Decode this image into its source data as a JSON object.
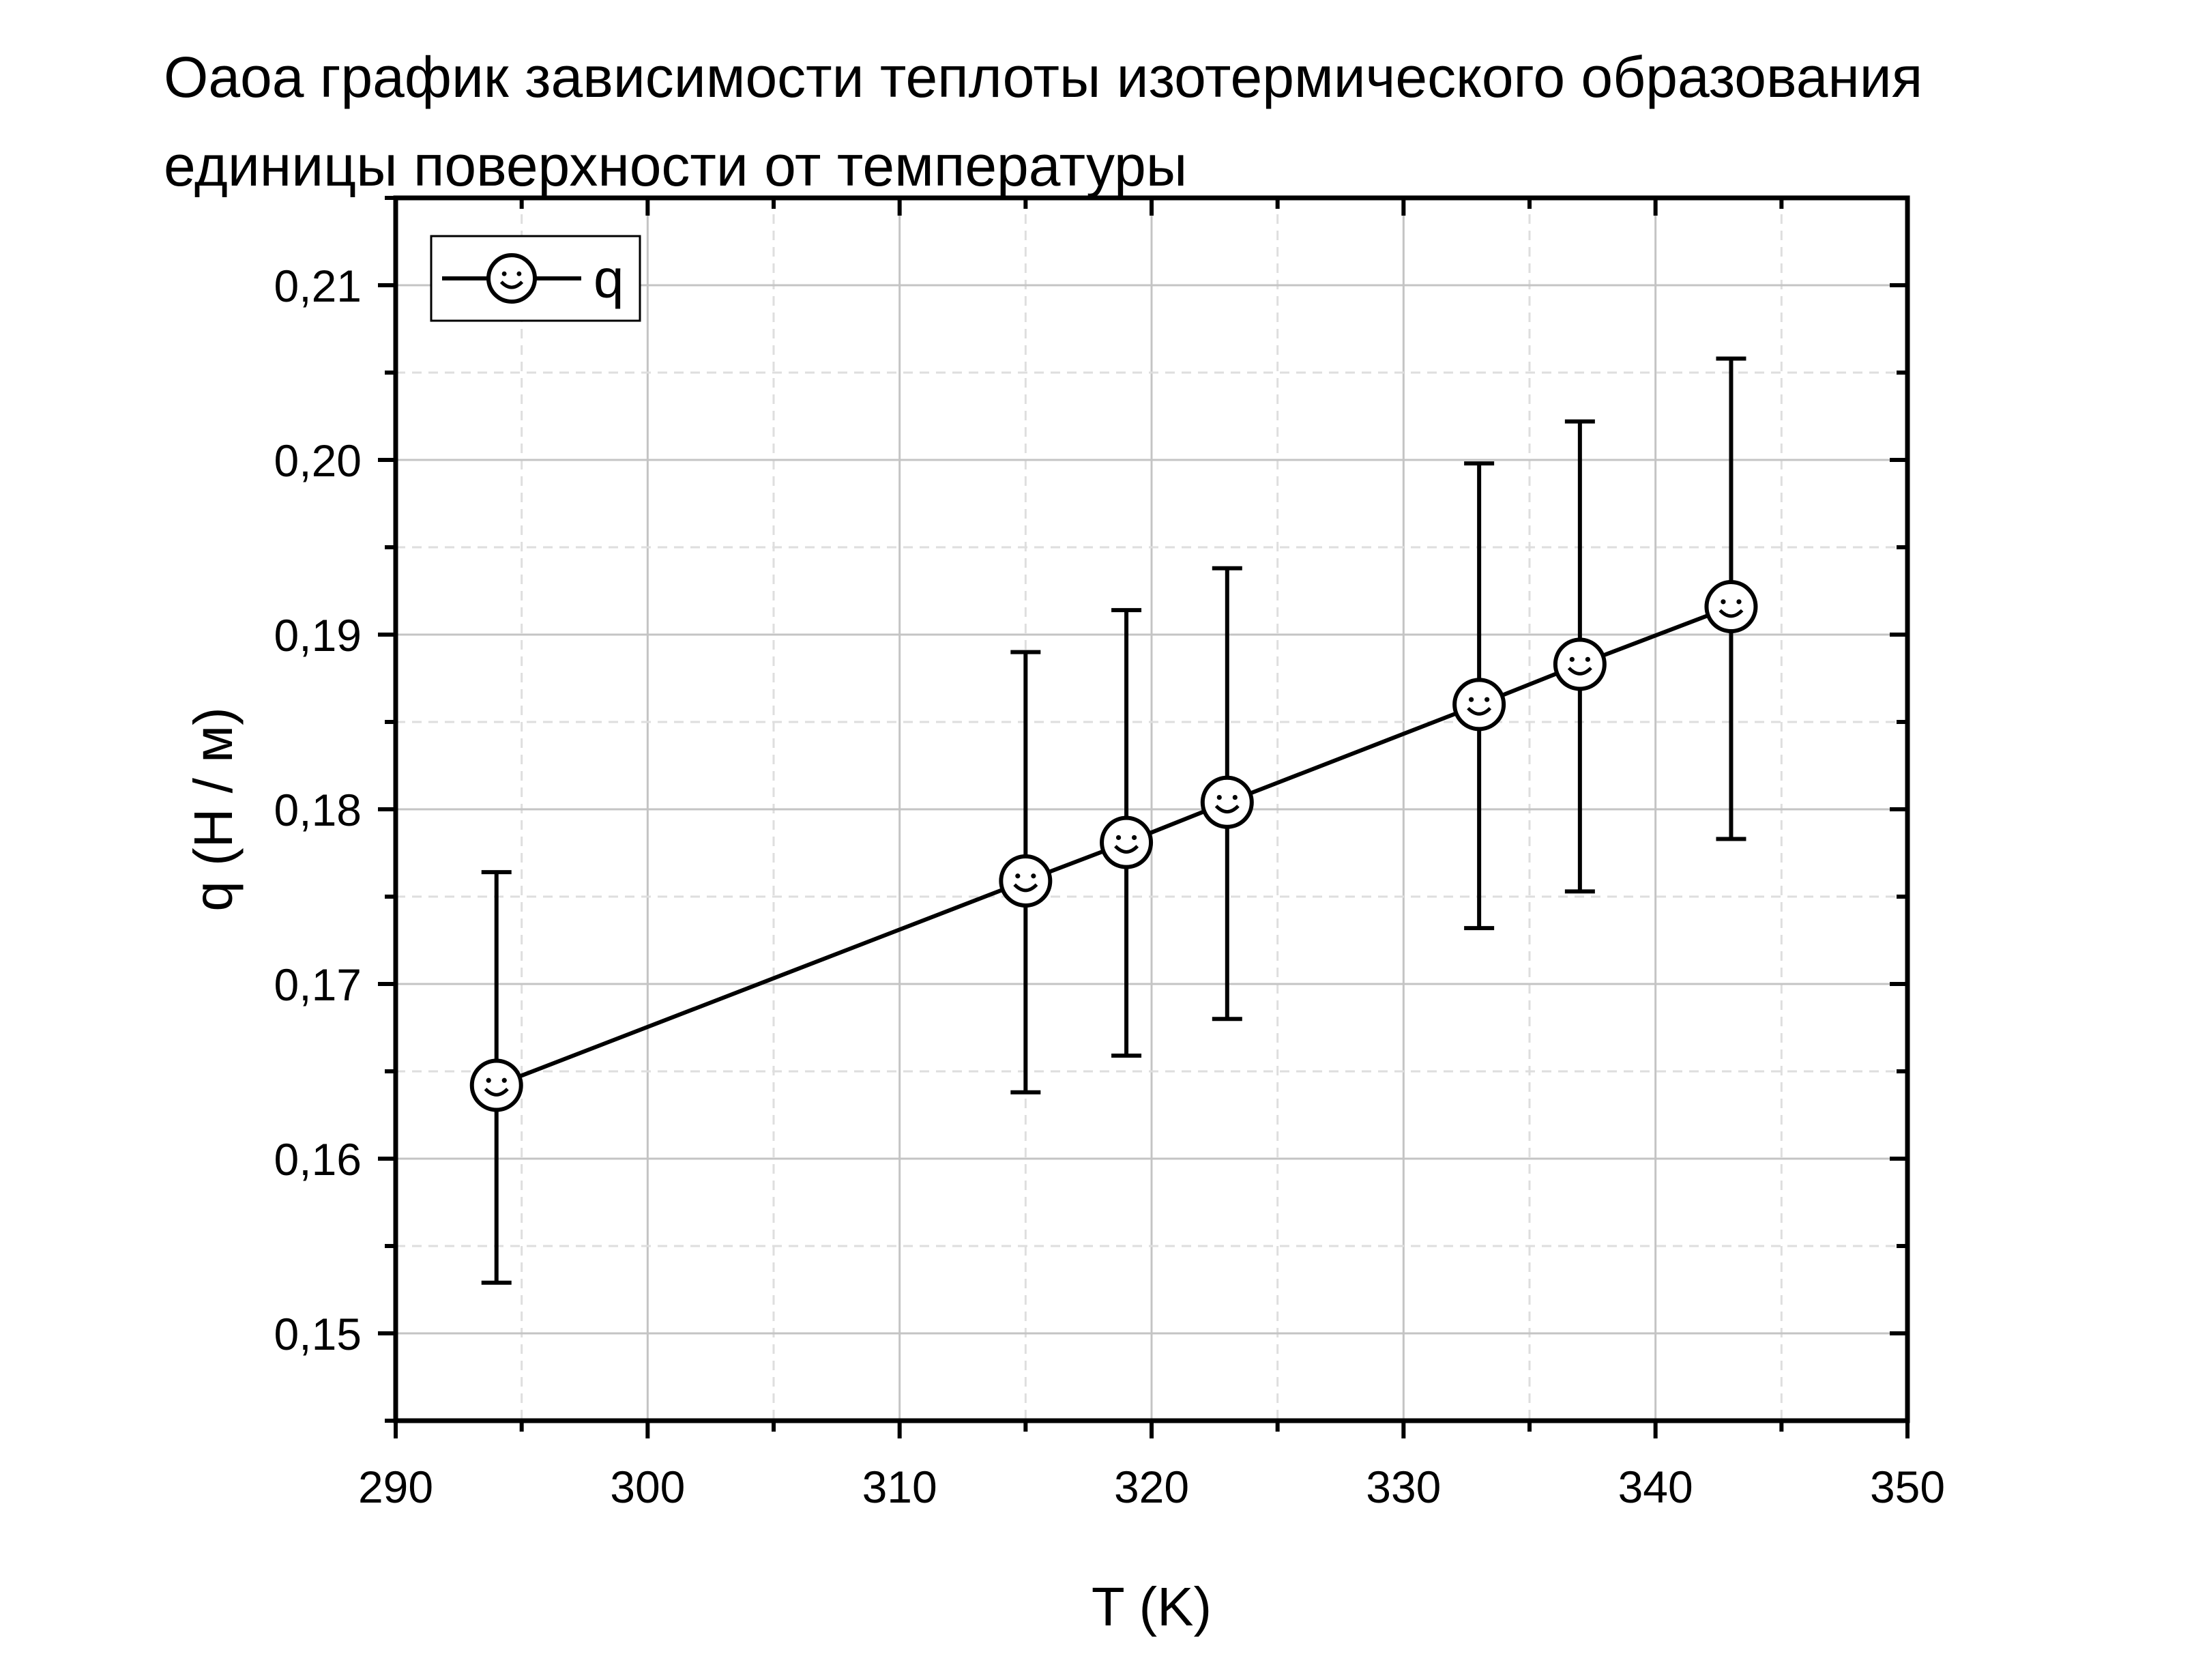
{
  "title_lines": [
    "Оаоа график зависимости теплоты изотермического образования",
    "единицы поверхности от температуры"
  ],
  "chart_data": {
    "type": "line",
    "title": "Оаоа график зависимости теплоты изотермического образования единицы поверхности от температуры",
    "xlabel": "T (K)",
    "ylabel": "q (Н / м)",
    "xlim": [
      290,
      350
    ],
    "ylim": [
      0.145,
      0.215
    ],
    "x_ticks": [
      290,
      300,
      310,
      320,
      330,
      340,
      350
    ],
    "x_tick_labels": [
      "290",
      "300",
      "310",
      "320",
      "330",
      "340",
      "350"
    ],
    "y_ticks": [
      0.15,
      0.16,
      0.17,
      0.18,
      0.19,
      0.2,
      0.21
    ],
    "y_tick_labels": [
      "0,15",
      "0,16",
      "0,17",
      "0,18",
      "0,19",
      "0,20",
      "0,21"
    ],
    "grid": true,
    "legend_position": "top-left",
    "series": [
      {
        "name": "q",
        "color": "#000000",
        "marker": "smiley",
        "x": [
          294,
          315,
          319,
          323,
          333,
          337,
          343
        ],
        "y": [
          0.1642,
          0.1759,
          0.1781,
          0.1804,
          0.186,
          0.1883,
          0.1916
        ],
        "error_low": [
          0.1529,
          0.1638,
          0.1659,
          0.168,
          0.1732,
          0.1753,
          0.1783
        ],
        "error_high": [
          0.1764,
          0.189,
          0.1914,
          0.1938,
          0.1998,
          0.2022,
          0.2058
        ]
      }
    ]
  }
}
